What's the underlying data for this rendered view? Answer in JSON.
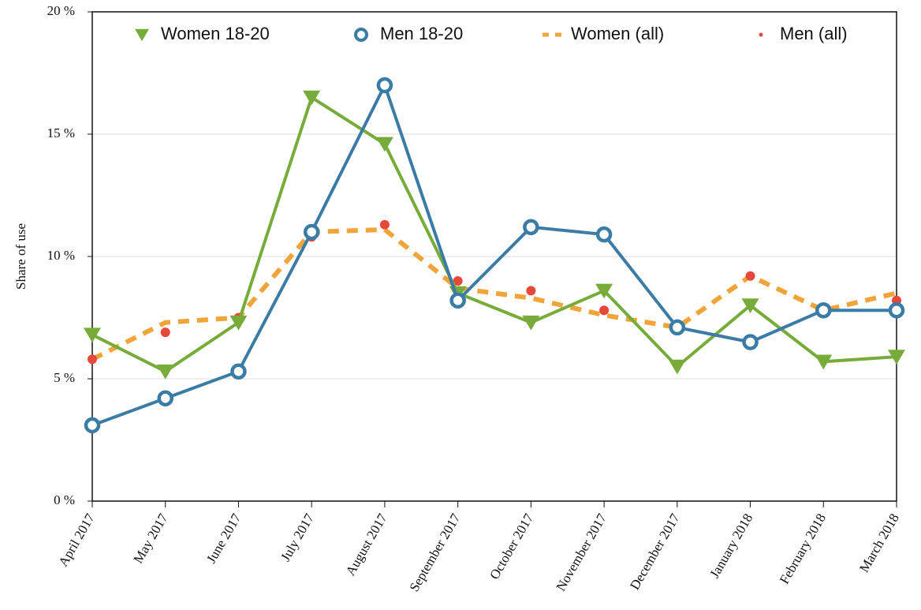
{
  "chart_data": {
    "type": "line",
    "y_label": "Share of use",
    "categories": [
      "April 2017",
      "May 2017",
      "June 2017",
      "July 2017",
      "August 2017",
      "September 2017",
      "October 2017",
      "November 2017",
      "December 2017",
      "January 2018",
      "February 2018",
      "March 2018"
    ],
    "series": [
      {
        "name": "Women 18-20",
        "color": "#77ac3a",
        "values": [
          6.8,
          5.3,
          7.3,
          16.5,
          14.6,
          8.5,
          7.3,
          8.6,
          5.5,
          8.0,
          5.7,
          5.9
        ]
      },
      {
        "name": "Men 18-20",
        "color": "#3a7ca5",
        "values": [
          3.1,
          4.2,
          5.3,
          11.0,
          17.0,
          8.2,
          11.2,
          10.9,
          7.1,
          6.5,
          7.8,
          7.8
        ]
      },
      {
        "name": "Women (all)",
        "color": "#f0a43a",
        "values": [
          5.8,
          7.3,
          7.5,
          11.0,
          11.1,
          8.7,
          8.3,
          7.6,
          7.1,
          9.2,
          7.8,
          8.5
        ]
      },
      {
        "name": "Men (all)",
        "color": "#e8483a",
        "values": [
          5.8,
          6.9,
          7.5,
          10.8,
          11.3,
          9.0,
          8.6,
          7.8,
          7.2,
          9.2,
          7.9,
          8.2
        ]
      }
    ],
    "ylim": [
      0,
      20
    ],
    "yticks": [
      {
        "value": 0,
        "label": "0 %"
      },
      {
        "value": 5,
        "label": "5 %"
      },
      {
        "value": 10,
        "label": "10 %"
      },
      {
        "value": 15,
        "label": "15 %"
      },
      {
        "value": 20,
        "label": "20 %"
      }
    ],
    "grid": true
  }
}
